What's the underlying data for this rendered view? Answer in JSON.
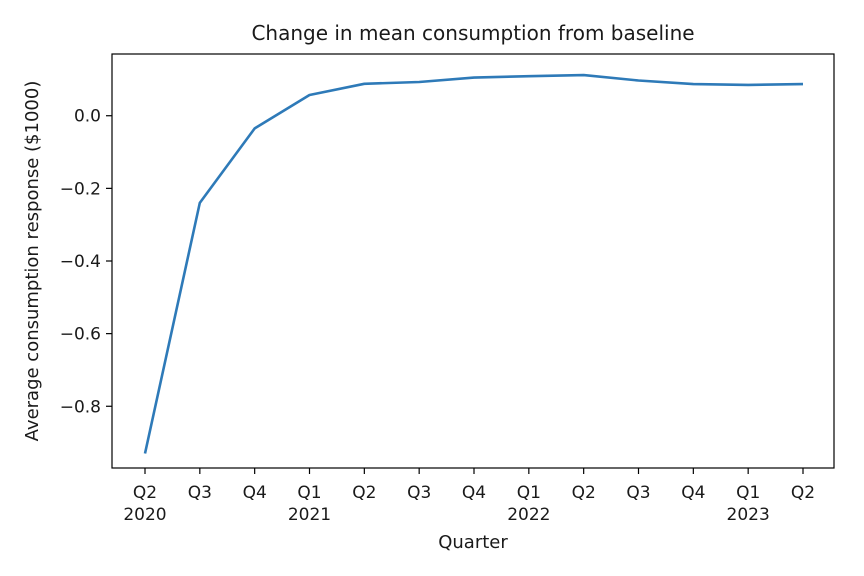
{
  "chart_data": {
    "type": "line",
    "title": "Change in mean consumption from baseline",
    "xlabel": "Quarter",
    "ylabel": "Average consumption response ($1000)",
    "categories": [
      "Q2",
      "Q3",
      "Q4",
      "Q1",
      "Q2",
      "Q3",
      "Q4",
      "Q1",
      "Q2",
      "Q3",
      "Q4",
      "Q1",
      "Q2"
    ],
    "year_labels": [
      "2020",
      "",
      "",
      "2021",
      "",
      "",
      "",
      "2022",
      "",
      "",
      "",
      "2023",
      ""
    ],
    "series": [
      {
        "values": [
          -0.93,
          -0.24,
          -0.035,
          0.057,
          0.088,
          0.093,
          0.105,
          0.109,
          0.112,
          0.097,
          0.087,
          0.085,
          0.087
        ],
        "color": "#2e7ab8"
      }
    ],
    "ylim": [
      -0.97,
      0.17
    ],
    "yticks": [
      0.0,
      -0.2,
      -0.4,
      -0.6,
      -0.8
    ],
    "ytick_labels": [
      "0.0",
      "−0.2",
      "−0.4",
      "−0.6",
      "−0.8"
    ],
    "grid": false,
    "legend": "none"
  }
}
